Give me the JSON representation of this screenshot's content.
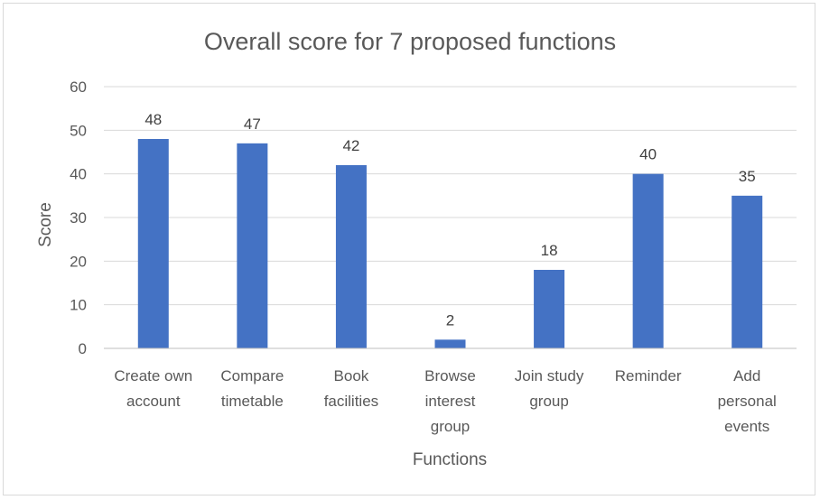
{
  "chart_data": {
    "type": "bar",
    "title": "Overall score for 7 proposed functions",
    "xlabel": "Functions",
    "ylabel": "Score",
    "ylim": [
      0,
      60
    ],
    "yticks": [
      0,
      10,
      20,
      30,
      40,
      50,
      60
    ],
    "categories": [
      "Create own account",
      "Compare timetable",
      "Book facilities",
      "Browse interest group",
      "Join study group",
      "Reminder",
      "Add personal events"
    ],
    "values": [
      48,
      47,
      42,
      2,
      18,
      40,
      35
    ],
    "grid": true,
    "legend": "none",
    "colors": {
      "bar": "#4472c4",
      "grid": "#d9d9d9",
      "axis": "#bfbfbf"
    }
  }
}
